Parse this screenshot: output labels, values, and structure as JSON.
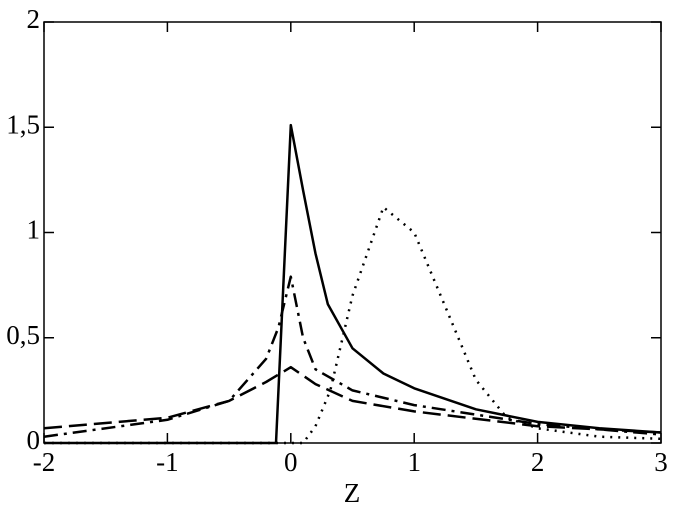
{
  "chart_data": {
    "type": "line",
    "x_label": "Z",
    "xlim": [
      -2,
      3
    ],
    "ylim": [
      0,
      2
    ],
    "xticks": [
      -2,
      -1,
      0,
      1,
      2,
      3
    ],
    "yticks": [
      0,
      {
        "value": 0.5,
        "label": "0,5"
      },
      1,
      {
        "value": 1.5,
        "label": "1,5"
      },
      2
    ],
    "series": [
      {
        "color": "#000000",
        "style": "solid",
        "x": [
          -2,
          -0.12,
          0,
          0.1,
          0.2,
          0.3,
          0.5,
          0.75,
          1,
          1.5,
          2,
          2.5,
          3
        ],
        "values": [
          0,
          0,
          1.51,
          1.2,
          0.9,
          0.66,
          0.45,
          0.33,
          0.26,
          0.16,
          0.1,
          0.07,
          0.05
        ]
      },
      {
        "color": "#000000",
        "style": "dashdot",
        "x": [
          -2,
          -1,
          -0.5,
          -0.2,
          -0.1,
          0,
          0.1,
          0.2,
          0.5,
          1,
          2,
          3
        ],
        "values": [
          0.03,
          0.11,
          0.2,
          0.4,
          0.55,
          0.79,
          0.5,
          0.35,
          0.25,
          0.18,
          0.09,
          0.04
        ]
      },
      {
        "color": "#000000",
        "style": "dashed",
        "x": [
          -2,
          -1,
          -0.5,
          -0.2,
          0,
          0.2,
          0.5,
          1,
          2,
          3
        ],
        "values": [
          0.07,
          0.12,
          0.2,
          0.29,
          0.36,
          0.28,
          0.2,
          0.15,
          0.08,
          0.05
        ]
      },
      {
        "color": "#000000",
        "style": "dotted",
        "x": [
          -2,
          0.1,
          0.2,
          0.32,
          0.5,
          0.75,
          1,
          1.25,
          1.5,
          1.75,
          2,
          2.5,
          3
        ],
        "values": [
          0,
          0,
          0.08,
          0.25,
          0.7,
          1.12,
          1.0,
          0.65,
          0.3,
          0.12,
          0.07,
          0.03,
          0.02
        ]
      }
    ]
  }
}
